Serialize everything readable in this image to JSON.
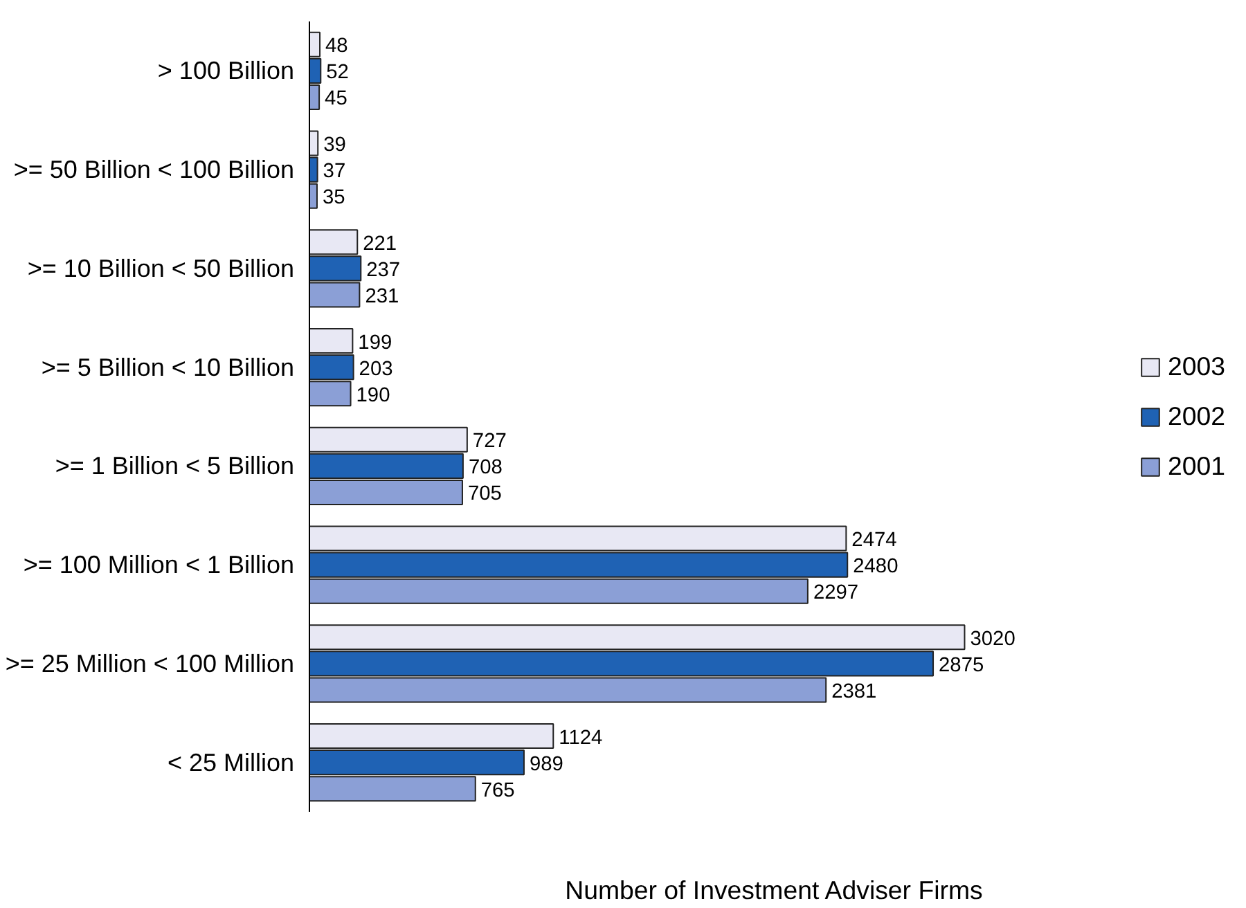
{
  "chart_data": {
    "type": "bar",
    "orientation": "horizontal",
    "xlabel": "Number of Investment Adviser Firms",
    "categories": [
      "> 100 Billion",
      ">= 50 Billion < 100 Billion",
      ">= 10 Billion < 50 Billion",
      ">= 5 Billion < 10 Billion",
      ">= 1 Billion < 5 Billion",
      ">= 100 Million < 1 Billion",
      ">= 25 Million < 100 Million",
      "< 25 Million"
    ],
    "series": [
      {
        "name": "2003",
        "color": "#e8e8f4",
        "values": [
          48,
          39,
          221,
          199,
          727,
          2474,
          3020,
          1124
        ]
      },
      {
        "name": "2002",
        "color": "#1f62b4",
        "values": [
          52,
          37,
          237,
          203,
          708,
          2480,
          2875,
          989
        ]
      },
      {
        "name": "2001",
        "color": "#8b9fd6",
        "values": [
          45,
          35,
          231,
          190,
          705,
          2297,
          2381,
          765
        ]
      }
    ],
    "data_labels": true,
    "tick_labels": "y",
    "grid": false,
    "legend": "right"
  }
}
